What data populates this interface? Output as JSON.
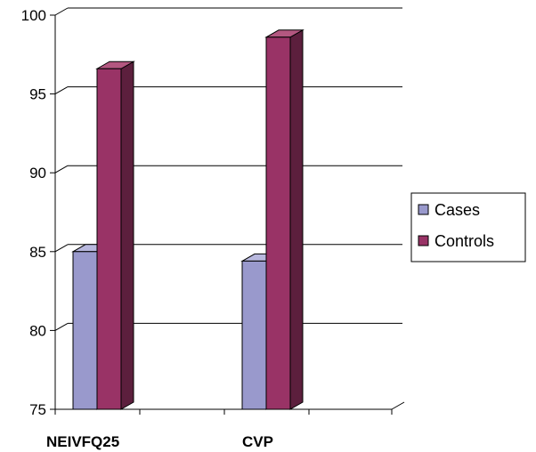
{
  "chart_data": {
    "type": "bar",
    "style": "3d-clustered",
    "categories": [
      "NEIVFQ25",
      "CVP"
    ],
    "series": [
      {
        "name": "Cases",
        "values": [
          85.0,
          84.4
        ],
        "color": "#9999CC",
        "side_color": "#6666A0",
        "top_color": "#B8B8DE"
      },
      {
        "name": "Controls",
        "values": [
          96.6,
          98.6
        ],
        "color": "#993366",
        "side_color": "#5C1F3D",
        "top_color": "#B35780"
      }
    ],
    "yticks": [
      75,
      80,
      85,
      90,
      95,
      100
    ],
    "ylim": [
      75,
      100
    ],
    "grid": true,
    "legend": "right"
  }
}
